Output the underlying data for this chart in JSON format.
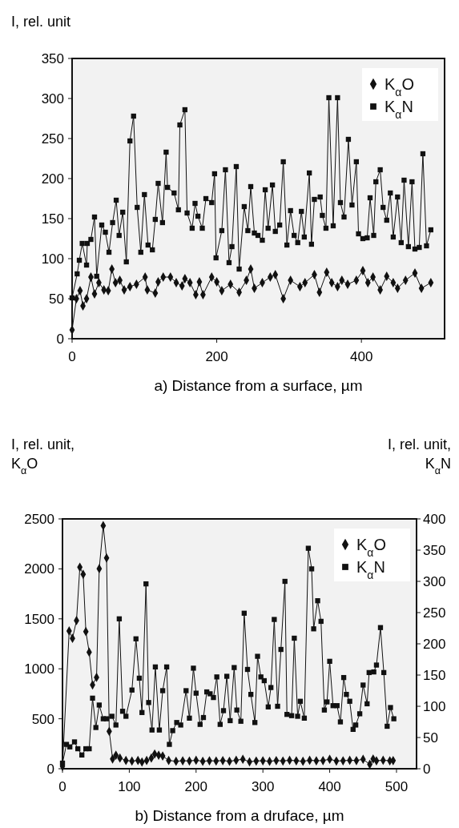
{
  "chart_data": [
    {
      "type": "line",
      "ylabel": "I, rel. unit",
      "xlabel": "a) Distance from a surface, µm",
      "xlim": [
        0,
        515
      ],
      "ylim": [
        0,
        350
      ],
      "xticks": [
        0,
        200,
        400
      ],
      "yticks": [
        0,
        50,
        100,
        150,
        200,
        250,
        300,
        350
      ],
      "grid": false,
      "legend": "top right",
      "series": [
        {
          "name": "K$_{α}$O",
          "color": "#111111",
          "marker": "diamond",
          "x": [
            0,
            6,
            11,
            15,
            20,
            26,
            31,
            37,
            44,
            50,
            55,
            60,
            66,
            72,
            80,
            89,
            101,
            104,
            115,
            119,
            126,
            136,
            144,
            152,
            156,
            163,
            171,
            176,
            181,
            193,
            200,
            207,
            219,
            231,
            241,
            247,
            252,
            263,
            274,
            281,
            292,
            302,
            315,
            322,
            335,
            342,
            352,
            359,
            367,
            373,
            381,
            393,
            402,
            409,
            416,
            426,
            435,
            444,
            450,
            461,
            474,
            483,
            496
          ],
          "values": [
            11,
            50,
            60,
            41,
            50,
            77,
            56,
            70,
            61,
            60,
            87,
            70,
            73,
            61,
            65,
            68,
            77,
            61,
            57,
            71,
            77,
            77,
            70,
            66,
            75,
            70,
            55,
            71,
            55,
            77,
            71,
            60,
            68,
            58,
            73,
            87,
            63,
            70,
            77,
            80,
            50,
            73,
            65,
            70,
            80,
            58,
            83,
            70,
            65,
            73,
            68,
            73,
            85,
            70,
            77,
            61,
            78,
            70,
            63,
            73,
            82,
            63,
            70
          ]
        },
        {
          "name": "K$_{α}$N",
          "color": "#111111",
          "marker": "square",
          "x": [
            0,
            7,
            10,
            14,
            20,
            21,
            26,
            31,
            34,
            41,
            46,
            51,
            56,
            61,
            65,
            70,
            75,
            80,
            85,
            90,
            95,
            100,
            105,
            111,
            115,
            119,
            125,
            130,
            132,
            141,
            147,
            149,
            156,
            159,
            166,
            170,
            174,
            180,
            185,
            193,
            197,
            199,
            207,
            212,
            217,
            221,
            227,
            231,
            238,
            243,
            247,
            252,
            257,
            263,
            267,
            271,
            277,
            281,
            287,
            292,
            297,
            302,
            307,
            312,
            317,
            321,
            328,
            331,
            335,
            343,
            346,
            351,
            355,
            361,
            367,
            371,
            376,
            382,
            387,
            393,
            396,
            402,
            408,
            412,
            417,
            420,
            426,
            430,
            435,
            440,
            444,
            450,
            455,
            459,
            465,
            470,
            474,
            480,
            485,
            490,
            496
          ],
          "values": [
            51,
            81,
            98,
            119,
            92,
            119,
            124,
            152,
            78,
            142,
            133,
            108,
            145,
            173,
            129,
            158,
            96,
            247,
            278,
            164,
            108,
            180,
            117,
            111,
            149,
            194,
            145,
            233,
            189,
            182,
            161,
            267,
            286,
            157,
            138,
            169,
            153,
            138,
            175,
            170,
            206,
            101,
            135,
            211,
            95,
            115,
            215,
            87,
            165,
            135,
            190,
            132,
            129,
            123,
            186,
            138,
            192,
            134,
            142,
            221,
            117,
            160,
            129,
            120,
            159,
            127,
            207,
            118,
            174,
            177,
            154,
            138,
            301,
            141,
            301,
            170,
            152,
            249,
            167,
            221,
            131,
            125,
            126,
            176,
            129,
            196,
            211,
            164,
            148,
            182,
            127,
            177,
            120,
            198,
            115,
            196,
            112,
            114,
            231,
            116,
            136
          ]
        }
      ]
    },
    {
      "type": "line",
      "ylabel": "I, rel. unit, K$_{α}$O",
      "y2label": "I, rel. unit, K$_{α}$N",
      "xlabel": "b) Distance from a druface, µm",
      "xlim": [
        0,
        530
      ],
      "ylim": [
        0,
        2500
      ],
      "y2lim": [
        0,
        400
      ],
      "xticks": [
        0,
        100,
        200,
        300,
        400,
        500
      ],
      "yticks": [
        0,
        500,
        1000,
        1500,
        2000,
        2500
      ],
      "y2ticks": [
        0,
        50,
        100,
        150,
        200,
        250,
        300,
        350,
        400
      ],
      "grid": false,
      "legend": "top right",
      "series": [
        {
          "name": "K$_{α}$O",
          "color": "#111111",
          "marker": "diamond",
          "x": [
            0,
            10,
            15,
            21,
            26,
            31,
            35,
            40,
            45,
            51,
            55,
            61,
            66,
            70,
            75,
            80,
            86,
            95,
            104,
            113,
            119,
            126,
            133,
            138,
            144,
            150,
            159,
            170,
            180,
            190,
            200,
            210,
            220,
            230,
            240,
            250,
            260,
            270,
            280,
            290,
            300,
            310,
            320,
            330,
            340,
            350,
            360,
            370,
            380,
            390,
            400,
            410,
            420,
            430,
            440,
            450,
            460,
            465,
            470,
            480,
            490,
            495
          ],
          "values": [
            24,
            1379,
            1305,
            1483,
            2017,
            1946,
            1373,
            1166,
            839,
            914,
            2002,
            2432,
            2109,
            374,
            98,
            136,
            107,
            83,
            77,
            83,
            68,
            83,
            107,
            148,
            136,
            128,
            83,
            75,
            80,
            78,
            85,
            75,
            80,
            78,
            82,
            75,
            85,
            95,
            70,
            78,
            80,
            75,
            82,
            78,
            85,
            80,
            75,
            85,
            80,
            82,
            95,
            78,
            80,
            85,
            82,
            95,
            44,
            98,
            80,
            85,
            80,
            82
          ]
        },
        {
          "name": "K$_{α}$N",
          "color": "#111111",
          "marker": "square",
          "axis": "y2",
          "x": [
            0,
            6,
            11,
            18,
            23,
            29,
            35,
            40,
            45,
            50,
            55,
            61,
            66,
            74,
            80,
            85,
            90,
            95,
            104,
            110,
            115,
            119,
            125,
            129,
            134,
            139,
            145,
            150,
            156,
            160,
            165,
            171,
            177,
            185,
            190,
            196,
            200,
            206,
            211,
            216,
            221,
            226,
            231,
            236,
            241,
            246,
            251,
            257,
            261,
            267,
            272,
            277,
            282,
            288,
            292,
            297,
            302,
            308,
            312,
            317,
            322,
            327,
            333,
            336,
            343,
            347,
            352,
            356,
            362,
            368,
            373,
            376,
            382,
            387,
            392,
            396,
            400,
            405,
            411,
            416,
            421,
            425,
            430,
            435,
            439,
            445,
            450,
            456,
            459,
            466,
            470,
            476,
            481,
            486,
            491,
            496
          ],
          "values": [
            9,
            39,
            35,
            43,
            32,
            22,
            32,
            32,
            113,
            66,
            102,
            80,
            80,
            84,
            70,
            240,
            92,
            84,
            126,
            208,
            145,
            90,
            296,
            106,
            62,
            163,
            62,
            125,
            163,
            39,
            61,
            74,
            70,
            125,
            81,
            161,
            121,
            71,
            82,
            123,
            120,
            114,
            147,
            71,
            93,
            148,
            77,
            162,
            94,
            76,
            249,
            159,
            119,
            74,
            180,
            147,
            141,
            99,
            130,
            239,
            100,
            191,
            300,
            87,
            85,
            209,
            84,
            108,
            81,
            353,
            320,
            224,
            269,
            236,
            94,
            107,
            172,
            101,
            101,
            75,
            146,
            119,
            108,
            63,
            70,
            88,
            134,
            104,
            154,
            155,
            166,
            226,
            154,
            68,
            98,
            80
          ]
        }
      ]
    }
  ]
}
